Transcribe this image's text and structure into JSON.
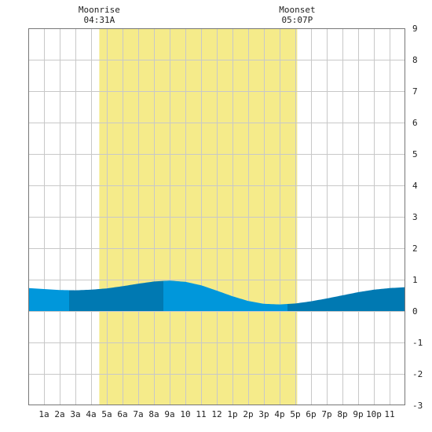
{
  "chart_data": {
    "type": "area",
    "title": "",
    "xlabel": "",
    "ylabel": "",
    "ylim": [
      -3,
      9
    ],
    "xlim": [
      0,
      24
    ],
    "grid": true,
    "yticks": [
      -3,
      -2,
      -1,
      0,
      1,
      2,
      3,
      4,
      5,
      6,
      7,
      8,
      9
    ],
    "xticks": [
      {
        "x": 1,
        "label": "1a"
      },
      {
        "x": 2,
        "label": "2a"
      },
      {
        "x": 3,
        "label": "3a"
      },
      {
        "x": 4,
        "label": "4a"
      },
      {
        "x": 5,
        "label": "5a"
      },
      {
        "x": 6,
        "label": "6a"
      },
      {
        "x": 7,
        "label": "7a"
      },
      {
        "x": 8,
        "label": "8a"
      },
      {
        "x": 9,
        "label": "9a"
      },
      {
        "x": 10,
        "label": "10"
      },
      {
        "x": 11,
        "label": "11"
      },
      {
        "x": 12,
        "label": "12"
      },
      {
        "x": 13,
        "label": "1p"
      },
      {
        "x": 14,
        "label": "2p"
      },
      {
        "x": 15,
        "label": "3p"
      },
      {
        "x": 16,
        "label": "4p"
      },
      {
        "x": 17,
        "label": "5p"
      },
      {
        "x": 18,
        "label": "6p"
      },
      {
        "x": 19,
        "label": "7p"
      },
      {
        "x": 20,
        "label": "8p"
      },
      {
        "x": 21,
        "label": "9p"
      },
      {
        "x": 22,
        "label": "10p"
      },
      {
        "x": 23,
        "label": "11"
      }
    ],
    "moon_band": {
      "start": 4.52,
      "end": 17.12,
      "color": "#f5eb8a"
    },
    "annotations": [
      {
        "x": 4.52,
        "lines": [
          "Moonrise",
          "04:31A"
        ]
      },
      {
        "x": 17.12,
        "lines": [
          "Moonset",
          "05:07P"
        ]
      }
    ],
    "series": [
      {
        "x": [
          0,
          1,
          2,
          3,
          4,
          5,
          6,
          7,
          8,
          9,
          10,
          11,
          12,
          13,
          14,
          15,
          16,
          17,
          18,
          19,
          20,
          21,
          22,
          23,
          24
        ],
        "y": [
          0.73,
          0.7,
          0.67,
          0.66,
          0.68,
          0.72,
          0.79,
          0.87,
          0.94,
          0.97,
          0.93,
          0.82,
          0.65,
          0.47,
          0.32,
          0.23,
          0.21,
          0.24,
          0.31,
          0.4,
          0.5,
          0.6,
          0.68,
          0.73,
          0.76
        ]
      }
    ],
    "shade_bands": [
      {
        "start": 0,
        "end": 2.6,
        "color": "#0097db"
      },
      {
        "start": 2.6,
        "end": 8.6,
        "color": "#0079b2"
      },
      {
        "start": 8.6,
        "end": 16.5,
        "color": "#0097db"
      },
      {
        "start": 16.5,
        "end": 24,
        "color": "#0079b2"
      }
    ]
  }
}
